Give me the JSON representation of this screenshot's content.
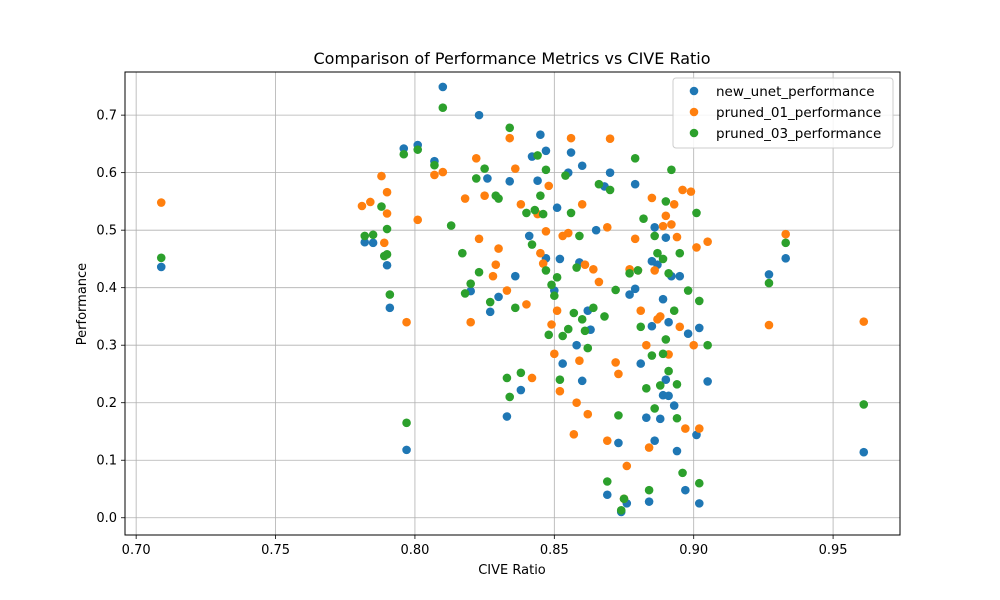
{
  "chart_data": {
    "type": "scatter",
    "title": "Comparison of Performance Metrics vs CIVE Ratio",
    "xlabel": "CIVE Ratio",
    "ylabel": "Performance",
    "xlim": [
      0.696,
      0.974
    ],
    "ylim": [
      -0.03,
      0.775
    ],
    "xticks": [
      0.7,
      0.75,
      0.8,
      0.85,
      0.9,
      0.95
    ],
    "xtick_labels": [
      "0.70",
      "0.75",
      "0.80",
      "0.85",
      "0.90",
      "0.95"
    ],
    "yticks": [
      0.0,
      0.1,
      0.2,
      0.3,
      0.4,
      0.5,
      0.6,
      0.7
    ],
    "ytick_labels": [
      "0.0",
      "0.1",
      "0.2",
      "0.3",
      "0.4",
      "0.5",
      "0.6",
      "0.7"
    ],
    "grid": true,
    "legend_position": "top-right",
    "series": [
      {
        "name": "new_unet_performance",
        "color": "#1f77b4",
        "points": [
          [
            0.709,
            0.436
          ],
          [
            0.782,
            0.479
          ],
          [
            0.785,
            0.478
          ],
          [
            0.79,
            0.439
          ],
          [
            0.791,
            0.365
          ],
          [
            0.796,
            0.642
          ],
          [
            0.797,
            0.118
          ],
          [
            0.801,
            0.648
          ],
          [
            0.807,
            0.62
          ],
          [
            0.81,
            0.749
          ],
          [
            0.82,
            0.394
          ],
          [
            0.823,
            0.7
          ],
          [
            0.826,
            0.59
          ],
          [
            0.827,
            0.358
          ],
          [
            0.83,
            0.384
          ],
          [
            0.833,
            0.176
          ],
          [
            0.834,
            0.585
          ],
          [
            0.836,
            0.42
          ],
          [
            0.838,
            0.222
          ],
          [
            0.841,
            0.49
          ],
          [
            0.842,
            0.628
          ],
          [
            0.844,
            0.586
          ],
          [
            0.845,
            0.666
          ],
          [
            0.847,
            0.638
          ],
          [
            0.847,
            0.451
          ],
          [
            0.85,
            0.395
          ],
          [
            0.851,
            0.539
          ],
          [
            0.852,
            0.45
          ],
          [
            0.853,
            0.268
          ],
          [
            0.855,
            0.6
          ],
          [
            0.856,
            0.635
          ],
          [
            0.858,
            0.3
          ],
          [
            0.859,
            0.444
          ],
          [
            0.86,
            0.612
          ],
          [
            0.86,
            0.238
          ],
          [
            0.862,
            0.36
          ],
          [
            0.863,
            0.327
          ],
          [
            0.865,
            0.5
          ],
          [
            0.868,
            0.576
          ],
          [
            0.869,
            0.04
          ],
          [
            0.87,
            0.6
          ],
          [
            0.873,
            0.13
          ],
          [
            0.874,
            0.01
          ],
          [
            0.876,
            0.025
          ],
          [
            0.877,
            0.388
          ],
          [
            0.879,
            0.398
          ],
          [
            0.879,
            0.58
          ],
          [
            0.881,
            0.268
          ],
          [
            0.883,
            0.174
          ],
          [
            0.884,
            0.028
          ],
          [
            0.885,
            0.333
          ],
          [
            0.885,
            0.446
          ],
          [
            0.886,
            0.134
          ],
          [
            0.886,
            0.505
          ],
          [
            0.887,
            0.44
          ],
          [
            0.888,
            0.172
          ],
          [
            0.889,
            0.213
          ],
          [
            0.889,
            0.38
          ],
          [
            0.89,
            0.24
          ],
          [
            0.89,
            0.487
          ],
          [
            0.891,
            0.212
          ],
          [
            0.891,
            0.34
          ],
          [
            0.892,
            0.42
          ],
          [
            0.893,
            0.195
          ],
          [
            0.894,
            0.116
          ],
          [
            0.895,
            0.42
          ],
          [
            0.897,
            0.048
          ],
          [
            0.898,
            0.32
          ],
          [
            0.901,
            0.144
          ],
          [
            0.902,
            0.33
          ],
          [
            0.902,
            0.025
          ],
          [
            0.905,
            0.237
          ],
          [
            0.927,
            0.423
          ],
          [
            0.933,
            0.451
          ],
          [
            0.961,
            0.114
          ]
        ]
      },
      {
        "name": "pruned_01_performance",
        "color": "#ff7f0e",
        "points": [
          [
            0.709,
            0.548
          ],
          [
            0.781,
            0.542
          ],
          [
            0.784,
            0.549
          ],
          [
            0.788,
            0.594
          ],
          [
            0.789,
            0.478
          ],
          [
            0.79,
            0.529
          ],
          [
            0.79,
            0.566
          ],
          [
            0.797,
            0.34
          ],
          [
            0.801,
            0.518
          ],
          [
            0.807,
            0.596
          ],
          [
            0.81,
            0.601
          ],
          [
            0.818,
            0.555
          ],
          [
            0.82,
            0.34
          ],
          [
            0.822,
            0.625
          ],
          [
            0.823,
            0.485
          ],
          [
            0.825,
            0.56
          ],
          [
            0.828,
            0.42
          ],
          [
            0.829,
            0.44
          ],
          [
            0.83,
            0.468
          ],
          [
            0.833,
            0.395
          ],
          [
            0.834,
            0.66
          ],
          [
            0.836,
            0.607
          ],
          [
            0.838,
            0.545
          ],
          [
            0.84,
            0.371
          ],
          [
            0.842,
            0.243
          ],
          [
            0.844,
            0.528
          ],
          [
            0.845,
            0.46
          ],
          [
            0.846,
            0.442
          ],
          [
            0.847,
            0.498
          ],
          [
            0.848,
            0.577
          ],
          [
            0.849,
            0.336
          ],
          [
            0.85,
            0.285
          ],
          [
            0.851,
            0.36
          ],
          [
            0.852,
            0.22
          ],
          [
            0.853,
            0.49
          ],
          [
            0.855,
            0.495
          ],
          [
            0.856,
            0.66
          ],
          [
            0.857,
            0.145
          ],
          [
            0.858,
            0.2
          ],
          [
            0.859,
            0.273
          ],
          [
            0.86,
            0.545
          ],
          [
            0.861,
            0.44
          ],
          [
            0.862,
            0.18
          ],
          [
            0.864,
            0.432
          ],
          [
            0.866,
            0.41
          ],
          [
            0.869,
            0.134
          ],
          [
            0.869,
            0.505
          ],
          [
            0.87,
            0.659
          ],
          [
            0.872,
            0.27
          ],
          [
            0.873,
            0.25
          ],
          [
            0.875,
            0.033
          ],
          [
            0.876,
            0.09
          ],
          [
            0.877,
            0.432
          ],
          [
            0.879,
            0.485
          ],
          [
            0.88,
            0.43
          ],
          [
            0.881,
            0.36
          ],
          [
            0.883,
            0.3
          ],
          [
            0.884,
            0.122
          ],
          [
            0.885,
            0.556
          ],
          [
            0.886,
            0.43
          ],
          [
            0.887,
            0.345
          ],
          [
            0.888,
            0.35
          ],
          [
            0.889,
            0.507
          ],
          [
            0.89,
            0.525
          ],
          [
            0.891,
            0.284
          ],
          [
            0.892,
            0.51
          ],
          [
            0.893,
            0.545
          ],
          [
            0.894,
            0.488
          ],
          [
            0.895,
            0.332
          ],
          [
            0.896,
            0.57
          ],
          [
            0.897,
            0.155
          ],
          [
            0.899,
            0.567
          ],
          [
            0.9,
            0.3
          ],
          [
            0.901,
            0.47
          ],
          [
            0.902,
            0.155
          ],
          [
            0.905,
            0.48
          ],
          [
            0.927,
            0.335
          ],
          [
            0.933,
            0.493
          ],
          [
            0.961,
            0.341
          ]
        ]
      },
      {
        "name": "pruned_03_performance",
        "color": "#2ca02c",
        "points": [
          [
            0.709,
            0.452
          ],
          [
            0.782,
            0.49
          ],
          [
            0.785,
            0.492
          ],
          [
            0.788,
            0.541
          ],
          [
            0.789,
            0.455
          ],
          [
            0.79,
            0.458
          ],
          [
            0.79,
            0.502
          ],
          [
            0.791,
            0.388
          ],
          [
            0.796,
            0.632
          ],
          [
            0.797,
            0.165
          ],
          [
            0.801,
            0.64
          ],
          [
            0.807,
            0.613
          ],
          [
            0.81,
            0.713
          ],
          [
            0.813,
            0.508
          ],
          [
            0.817,
            0.46
          ],
          [
            0.818,
            0.39
          ],
          [
            0.82,
            0.407
          ],
          [
            0.822,
            0.59
          ],
          [
            0.823,
            0.427
          ],
          [
            0.825,
            0.607
          ],
          [
            0.827,
            0.375
          ],
          [
            0.829,
            0.56
          ],
          [
            0.83,
            0.555
          ],
          [
            0.833,
            0.243
          ],
          [
            0.834,
            0.678
          ],
          [
            0.834,
            0.21
          ],
          [
            0.836,
            0.365
          ],
          [
            0.838,
            0.252
          ],
          [
            0.84,
            0.53
          ],
          [
            0.842,
            0.475
          ],
          [
            0.843,
            0.535
          ],
          [
            0.844,
            0.63
          ],
          [
            0.845,
            0.56
          ],
          [
            0.846,
            0.528
          ],
          [
            0.847,
            0.605
          ],
          [
            0.847,
            0.43
          ],
          [
            0.848,
            0.318
          ],
          [
            0.849,
            0.405
          ],
          [
            0.85,
            0.386
          ],
          [
            0.851,
            0.418
          ],
          [
            0.852,
            0.24
          ],
          [
            0.853,
            0.316
          ],
          [
            0.854,
            0.595
          ],
          [
            0.855,
            0.328
          ],
          [
            0.856,
            0.53
          ],
          [
            0.857,
            0.356
          ],
          [
            0.858,
            0.435
          ],
          [
            0.859,
            0.49
          ],
          [
            0.86,
            0.345
          ],
          [
            0.861,
            0.325
          ],
          [
            0.862,
            0.295
          ],
          [
            0.864,
            0.365
          ],
          [
            0.866,
            0.58
          ],
          [
            0.868,
            0.35
          ],
          [
            0.869,
            0.063
          ],
          [
            0.87,
            0.57
          ],
          [
            0.872,
            0.396
          ],
          [
            0.873,
            0.178
          ],
          [
            0.874,
            0.013
          ],
          [
            0.875,
            0.033
          ],
          [
            0.877,
            0.425
          ],
          [
            0.879,
            0.625
          ],
          [
            0.88,
            0.43
          ],
          [
            0.881,
            0.332
          ],
          [
            0.882,
            0.52
          ],
          [
            0.883,
            0.225
          ],
          [
            0.884,
            0.048
          ],
          [
            0.885,
            0.282
          ],
          [
            0.886,
            0.19
          ],
          [
            0.886,
            0.49
          ],
          [
            0.887,
            0.46
          ],
          [
            0.888,
            0.23
          ],
          [
            0.889,
            0.285
          ],
          [
            0.889,
            0.45
          ],
          [
            0.89,
            0.31
          ],
          [
            0.89,
            0.55
          ],
          [
            0.891,
            0.255
          ],
          [
            0.891,
            0.425
          ],
          [
            0.892,
            0.605
          ],
          [
            0.893,
            0.36
          ],
          [
            0.894,
            0.232
          ],
          [
            0.894,
            0.173
          ],
          [
            0.895,
            0.46
          ],
          [
            0.896,
            0.078
          ],
          [
            0.898,
            0.395
          ],
          [
            0.901,
            0.53
          ],
          [
            0.902,
            0.377
          ],
          [
            0.902,
            0.06
          ],
          [
            0.905,
            0.3
          ],
          [
            0.927,
            0.408
          ],
          [
            0.933,
            0.478
          ],
          [
            0.961,
            0.197
          ]
        ]
      }
    ]
  }
}
